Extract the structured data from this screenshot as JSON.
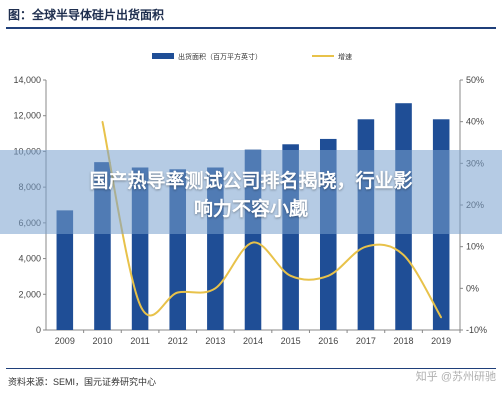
{
  "figure": {
    "title": "图：全球半导体硅片出货面积",
    "source": "资料来源：SEMI，国元证券研究中心",
    "watermark": "知乎 @苏州研驰"
  },
  "banner": {
    "line1": "国产热导率测试公司排名揭晓，行业影",
    "line2": "响力不容小觑"
  },
  "legend": {
    "bar_label": "出货面积（百万平方英寸）",
    "line_label": "增速"
  },
  "colors": {
    "bar": "#1f4e96",
    "line": "#e8c24a",
    "axis": "#888888",
    "banner": "#78a0cd"
  },
  "chart_data": {
    "type": "bar",
    "categories": [
      "2009",
      "2010",
      "2011",
      "2012",
      "2013",
      "2014",
      "2015",
      "2016",
      "2017",
      "2018",
      "2019"
    ],
    "series": [
      {
        "name": "出货面积（百万平方英寸）",
        "type": "bar",
        "axis": "left",
        "values": [
          6700,
          9400,
          9100,
          9000,
          9100,
          10100,
          10400,
          10700,
          11800,
          12700,
          11800
        ]
      },
      {
        "name": "增速",
        "type": "line",
        "axis": "right",
        "unit": "%",
        "values": [
          null,
          40,
          -4,
          -1,
          0,
          11,
          3,
          3,
          10,
          8,
          -7
        ]
      }
    ],
    "ylim_left": [
      0,
      14000
    ],
    "yticks_left": [
      "0",
      "2,000",
      "4,000",
      "6,000",
      "8,000",
      "10,000",
      "12,000",
      "14,000"
    ],
    "ylim_right": [
      -10,
      50
    ],
    "yticks_right": [
      "-10%",
      "0%",
      "10%",
      "20%",
      "30%",
      "40%",
      "50%"
    ],
    "legend_position": "top-center",
    "grid": false
  }
}
